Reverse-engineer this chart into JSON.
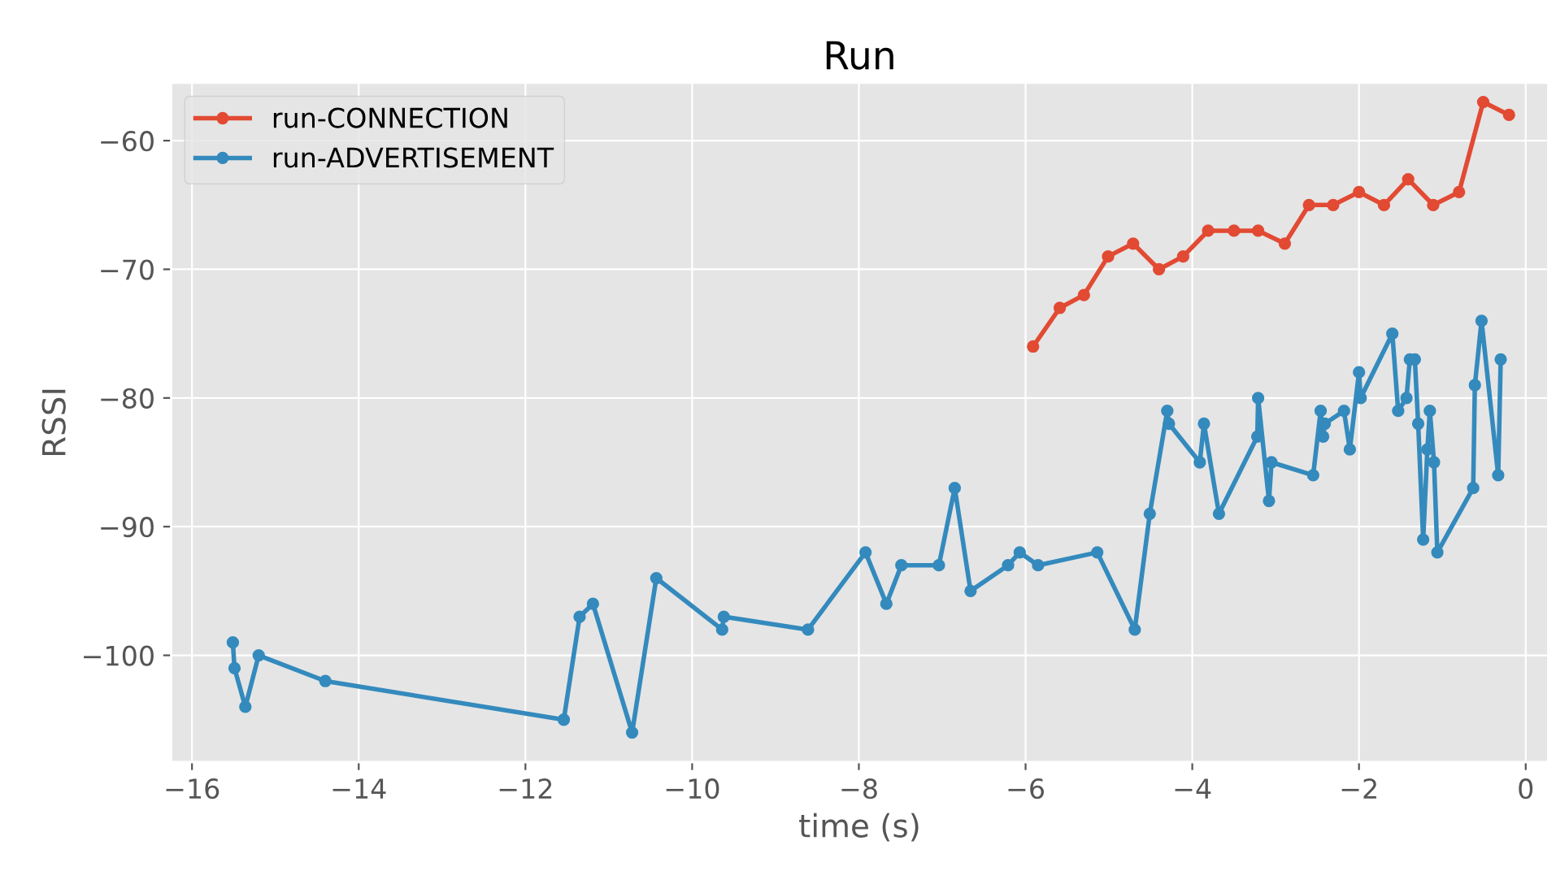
{
  "chart_data": {
    "type": "line",
    "title": "Run",
    "xlabel": "time (s)",
    "ylabel": "RSSI",
    "xlim": [
      -16.25,
      0.27
    ],
    "ylim": [
      -108.3,
      -55.5
    ],
    "xticks": [
      -16,
      -14,
      -12,
      -10,
      -8,
      -6,
      -4,
      -2,
      0
    ],
    "yticks": [
      -100,
      -90,
      -80,
      -70,
      -60
    ],
    "grid": true,
    "legend": "top left",
    "marker": "circle",
    "line_style": "solid",
    "series": [
      {
        "name": "run-CONNECTION",
        "color": "#e24a33",
        "x": [
          -5.91,
          -5.59,
          -5.3,
          -5.01,
          -4.71,
          -4.4,
          -4.11,
          -3.81,
          -3.5,
          -3.21,
          -2.89,
          -2.6,
          -2.31,
          -2.0,
          -1.7,
          -1.41,
          -1.11,
          -0.8,
          -0.51,
          -0.2
        ],
        "values": [
          -76,
          -73,
          -72,
          -69,
          -68,
          -70,
          -69,
          -67,
          -67,
          -67,
          -68,
          -65,
          -65,
          -64,
          -65,
          -63,
          -65,
          -64,
          -57,
          -58
        ]
      },
      {
        "name": "run-ADVERTISEMENT",
        "color": "#348abd",
        "x": [
          -15.51,
          -15.49,
          -15.36,
          -15.2,
          -14.4,
          -11.54,
          -11.35,
          -11.19,
          -10.72,
          -10.43,
          -9.64,
          -9.62,
          -8.61,
          -7.92,
          -7.67,
          -7.49,
          -7.04,
          -6.85,
          -6.66,
          -6.21,
          -6.07,
          -5.85,
          -5.14,
          -4.69,
          -4.51,
          -4.3,
          -4.28,
          -3.91,
          -3.86,
          -3.68,
          -3.22,
          -3.21,
          -3.08,
          -3.05,
          -2.55,
          -2.46,
          -2.43,
          -2.41,
          -2.18,
          -2.11,
          -2.0,
          -1.98,
          -1.6,
          -1.53,
          -1.43,
          -1.39,
          -1.33,
          -1.29,
          -1.23,
          -1.18,
          -1.15,
          -1.1,
          -1.06,
          -0.63,
          -0.61,
          -0.53,
          -0.33,
          -0.3
        ],
        "values": [
          -99,
          -101,
          -104,
          -100,
          -102,
          -105,
          -97,
          -96,
          -106,
          -94,
          -98,
          -97,
          -98,
          -92,
          -96,
          -93,
          -93,
          -87,
          -95,
          -93,
          -92,
          -93,
          -92,
          -98,
          -89,
          -81,
          -82,
          -85,
          -82,
          -89,
          -83,
          -80,
          -88,
          -85,
          -86,
          -81,
          -83,
          -82,
          -81,
          -84,
          -78,
          -80,
          -75,
          -81,
          -80,
          -77,
          -77,
          -82,
          -91,
          -84,
          -81,
          -85,
          -92,
          -87,
          -79,
          -74,
          -86,
          -77
        ]
      }
    ]
  }
}
